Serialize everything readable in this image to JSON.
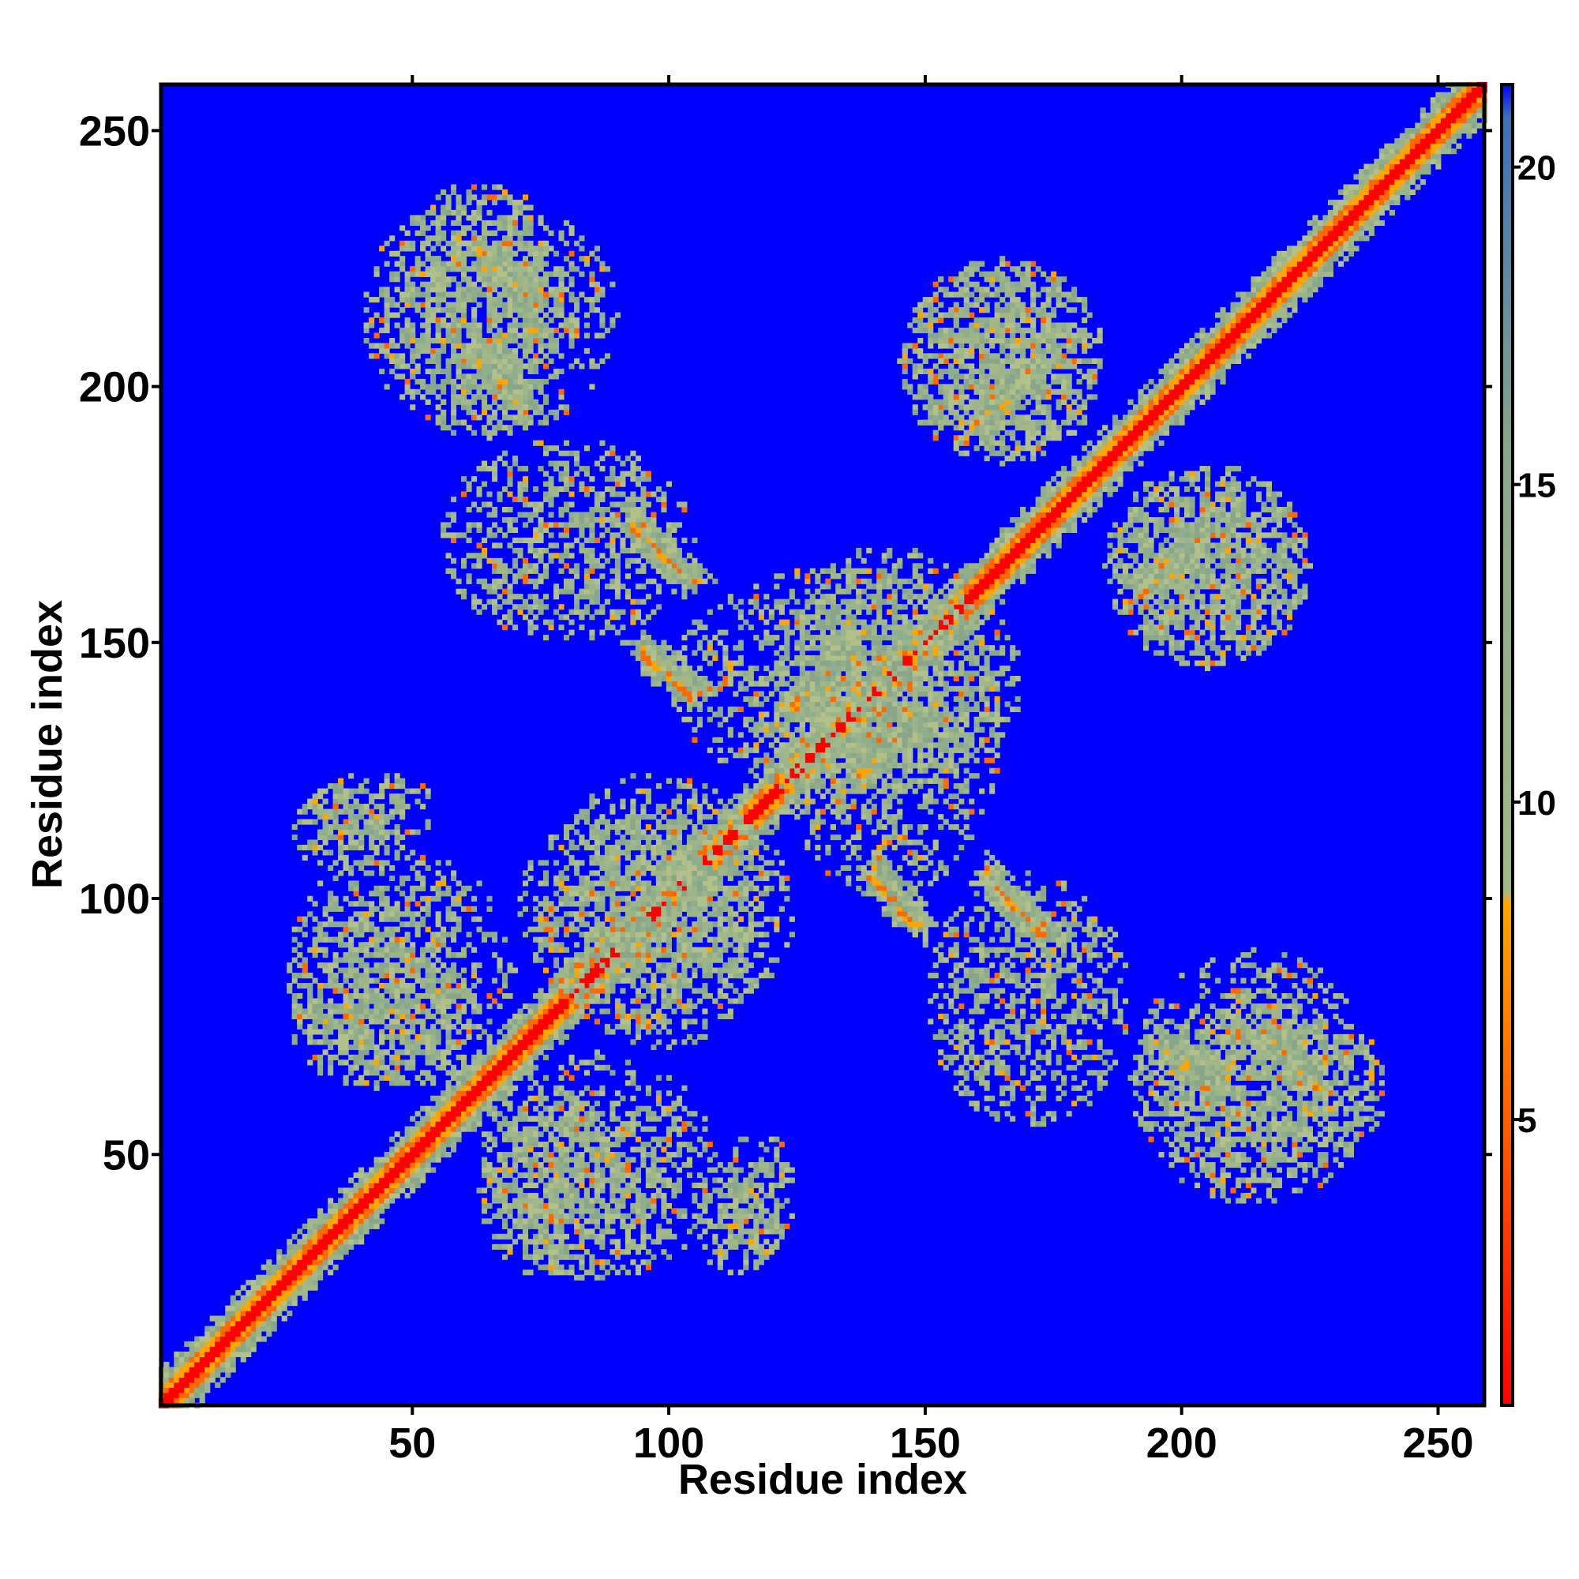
{
  "chart_data": {
    "type": "heatmap",
    "title": "",
    "xlabel": "Residue index",
    "ylabel": "Residue index",
    "xlim": [
      1,
      259
    ],
    "ylim": [
      1,
      259
    ],
    "x_ticks": [
      50,
      100,
      150,
      200,
      250
    ],
    "y_ticks": [
      50,
      100,
      150,
      200,
      250
    ],
    "colorbar": {
      "range": [
        0.5,
        21.3
      ],
      "ticks": [
        5,
        10,
        15,
        20
      ],
      "stops": [
        {
          "value": 0.5,
          "color": "#ff0000"
        },
        {
          "value": 4.0,
          "color": "#ff4a00"
        },
        {
          "value": 8.4,
          "color": "#ffa500"
        },
        {
          "value": 8.6,
          "color": "#a3b888"
        },
        {
          "value": 15.5,
          "color": "#8aa68a"
        },
        {
          "value": 20.8,
          "color": "#3c6fb8"
        },
        {
          "value": 21.3,
          "color": "#0000ff"
        }
      ]
    },
    "background_color": "#0000ff",
    "diagonal_color": "#ff0000",
    "contact_features": [
      {
        "kind": "diagonal_band",
        "from": 1,
        "to": 259
      },
      {
        "kind": "antiparallel",
        "x": [
          62,
          72
        ],
        "y": [
          218,
          228
        ]
      },
      {
        "kind": "antiparallel",
        "x": [
          62,
          72
        ],
        "y": [
          197,
          208
        ]
      },
      {
        "kind": "antiparallel",
        "x": [
          95,
          105
        ],
        "y": [
          162,
          172
        ]
      },
      {
        "kind": "antiparallel",
        "x": [
          95,
          105
        ],
        "y": [
          140,
          150
        ]
      },
      {
        "kind": "parallel",
        "x": [
          162,
          172
        ],
        "y": [
          192,
          205
        ]
      },
      {
        "kind": "parallel",
        "x": [
          193,
          205
        ],
        "y": [
          160,
          172
        ]
      },
      {
        "kind": "parallel",
        "x": [
          125,
          135
        ],
        "y": [
          138,
          148
        ]
      },
      {
        "kind": "parallel",
        "x": [
          137,
          147
        ],
        "y": [
          124,
          134
        ]
      },
      {
        "kind": "antiparallel",
        "x": [
          140,
          148
        ],
        "y": [
          95,
          104
        ]
      },
      {
        "kind": "antiparallel",
        "x": [
          163,
          173
        ],
        "y": [
          93,
          103
        ]
      },
      {
        "kind": "antiparallel",
        "x": [
          196,
          206
        ],
        "y": [
          62,
          72
        ]
      },
      {
        "kind": "antiparallel",
        "x": [
          218,
          228
        ],
        "y": [
          62,
          72
        ]
      },
      {
        "kind": "cloud",
        "x": [
          40,
          90
        ],
        "y": [
          190,
          238
        ]
      },
      {
        "kind": "cloud",
        "x": [
          25,
          62
        ],
        "y": [
          62,
          95
        ]
      },
      {
        "kind": "cloud",
        "x": [
          62,
          110
        ],
        "y": [
          25,
          70
        ]
      },
      {
        "kind": "cloud",
        "x": [
          145,
          185
        ],
        "y": [
          185,
          225
        ]
      },
      {
        "kind": "cloud",
        "x": [
          185,
          225
        ],
        "y": [
          145,
          185
        ]
      },
      {
        "kind": "cloud",
        "x": [
          150,
          190
        ],
        "y": [
          55,
          105
        ]
      },
      {
        "kind": "cloud",
        "x": [
          190,
          240
        ],
        "y": [
          45,
          80
        ]
      },
      {
        "kind": "cloud",
        "x": [
          75,
          120
        ],
        "y": [
          70,
          125
        ]
      },
      {
        "kind": "cloud",
        "x": [
          120,
          165
        ],
        "y": [
          100,
          170
        ]
      },
      {
        "kind": "cloud",
        "x": [
          26,
          50
        ],
        "y": [
          105,
          122
        ]
      },
      {
        "kind": "cloud",
        "x": [
          110,
          125
        ],
        "y": [
          30,
          55
        ]
      }
    ]
  }
}
